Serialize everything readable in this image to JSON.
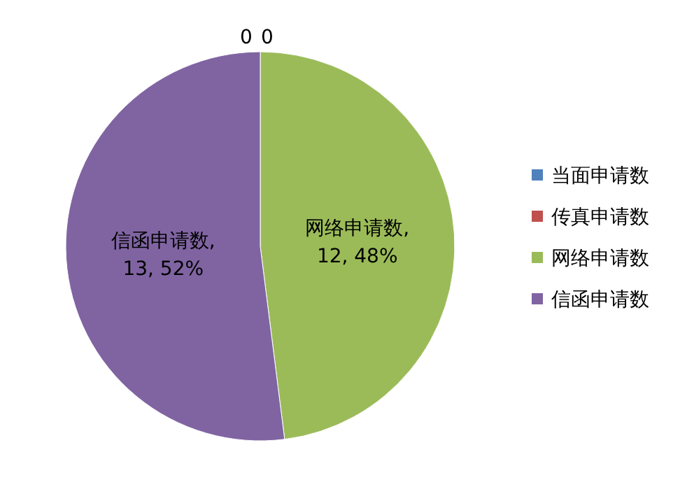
{
  "chart_data": {
    "type": "pie",
    "categories": [
      "当面申请数",
      "传真申请数",
      "网络申请数",
      "信函申请数"
    ],
    "values": [
      0,
      0,
      12,
      13
    ],
    "colors": [
      "#4f81bd",
      "#c0504d",
      "#9bbb59",
      "#8064a2"
    ],
    "value_labels": [
      "0",
      "0",
      "网络申请数, 12, 48%",
      "信函申请数, 13, 52%"
    ],
    "legend": "right"
  }
}
